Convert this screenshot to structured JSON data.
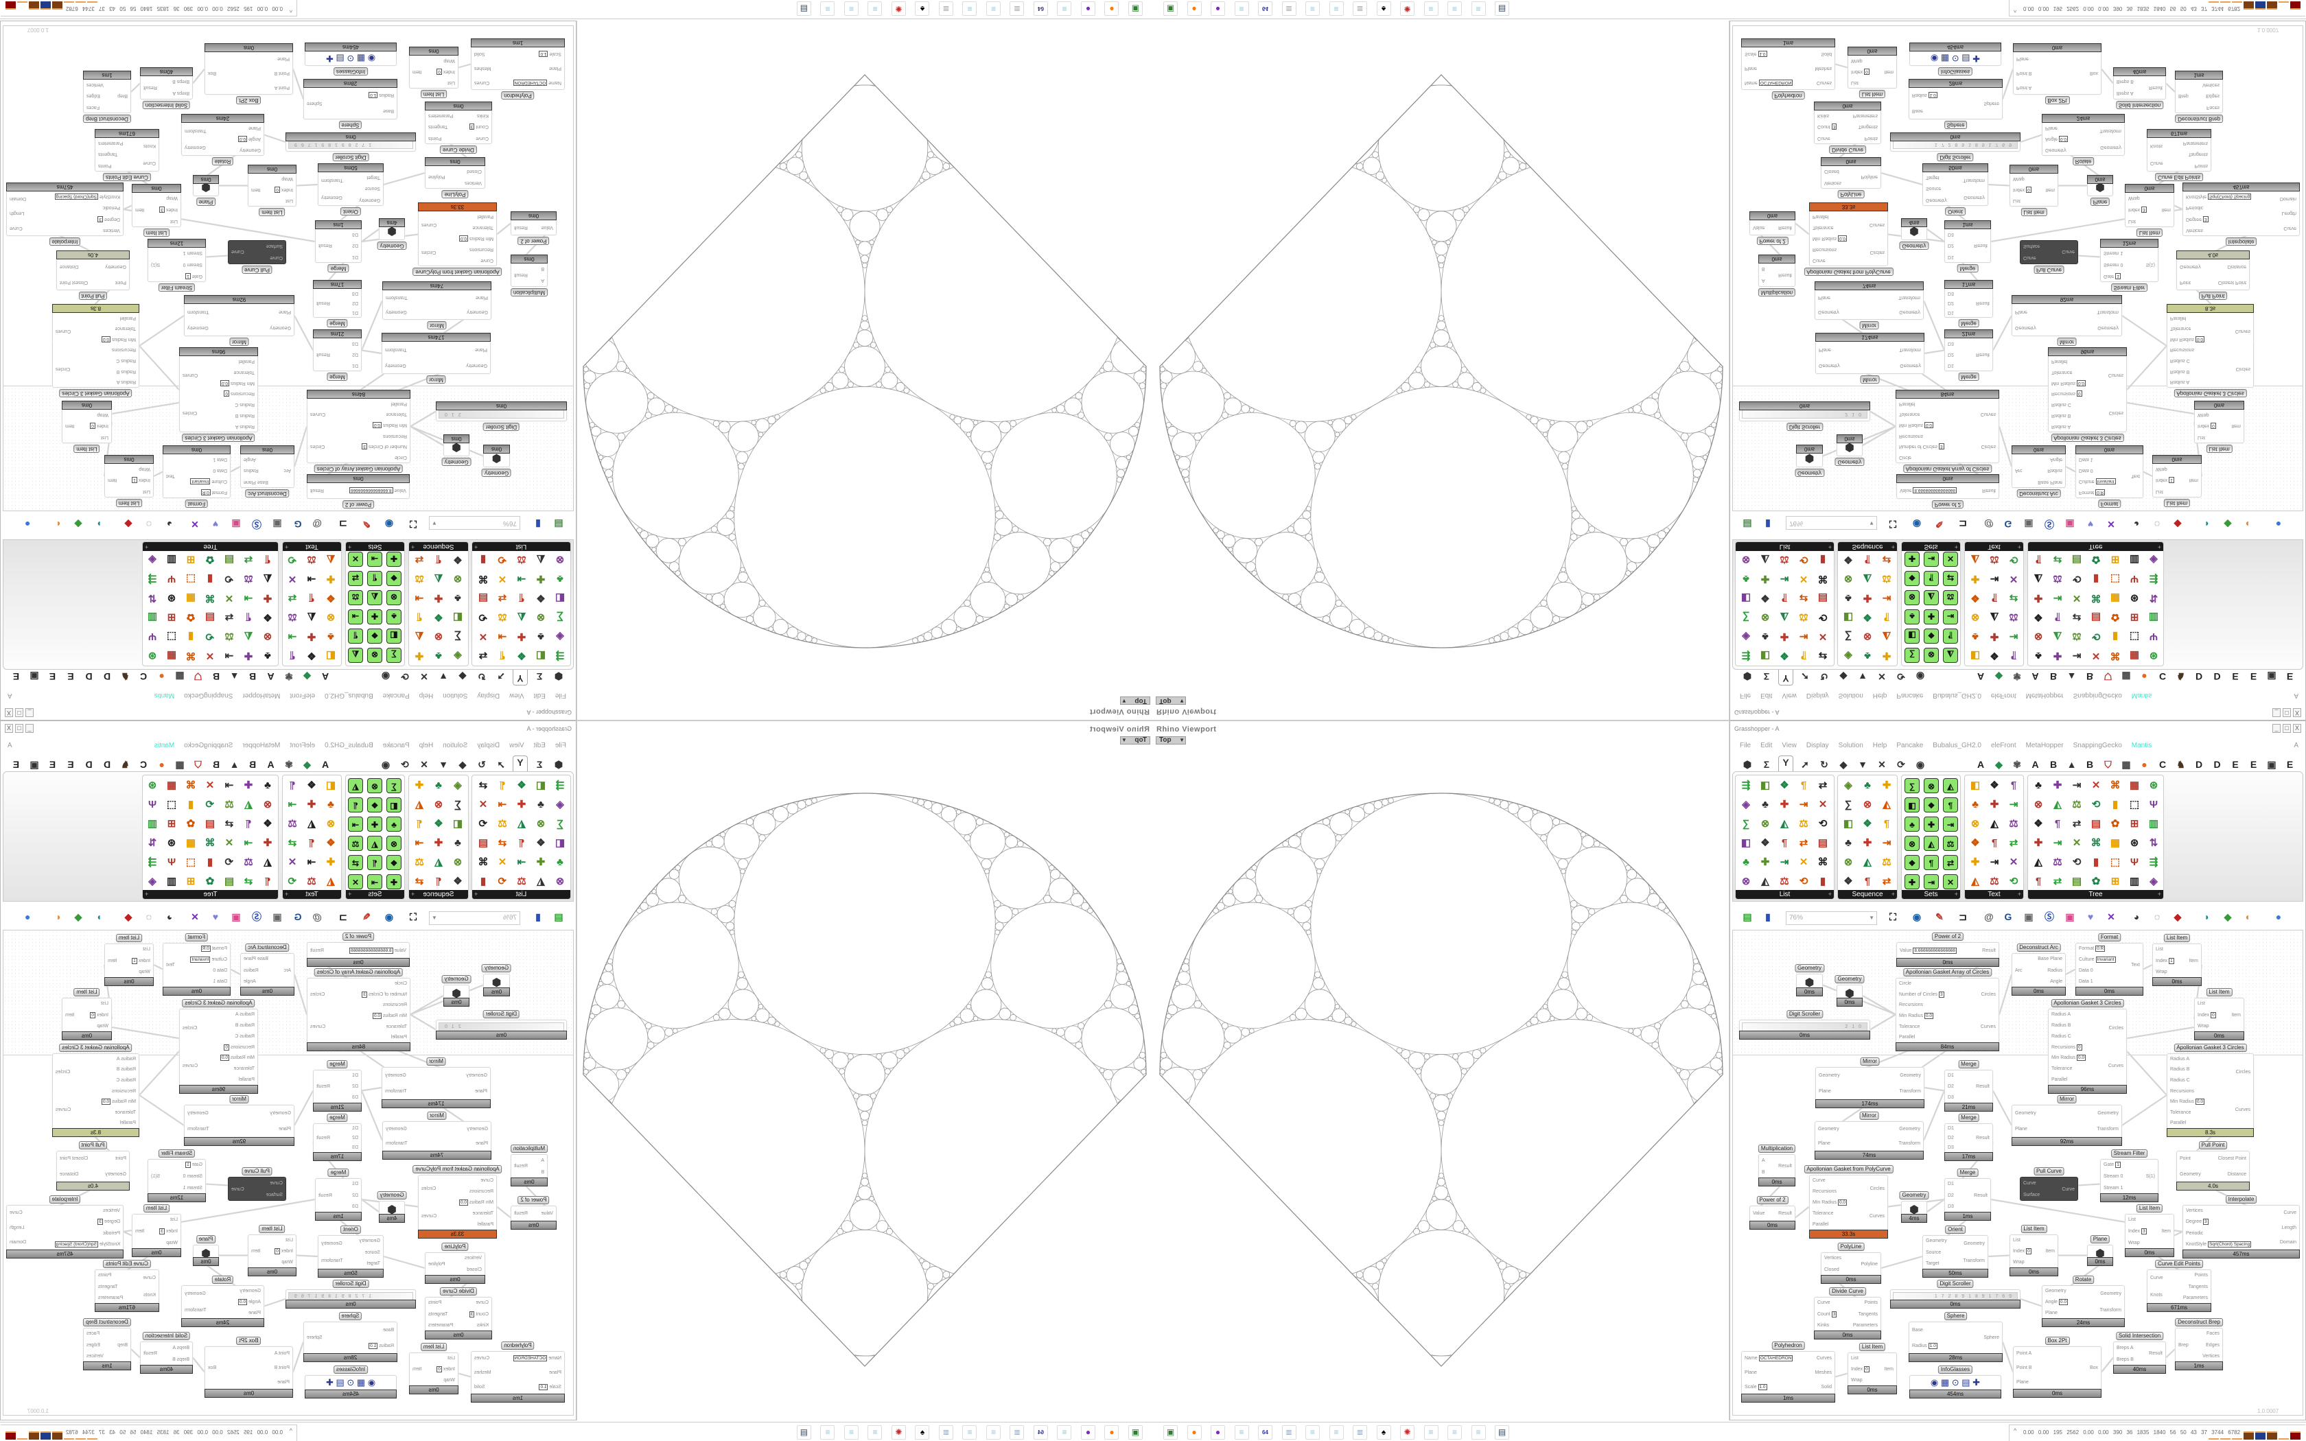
{
  "viewport": {
    "title": "Rhino Viewport",
    "view": "Top"
  },
  "gh": {
    "title": "Grasshopper - A",
    "window_buttons": [
      "_",
      "□",
      "X"
    ],
    "menu": [
      "File",
      "Edit",
      "View",
      "Display",
      "Solution",
      "Help",
      "Pancake",
      "Bubalus_GH2.0",
      "eleFront",
      "MetaHopper",
      "SnappingGecko",
      "Mantis"
    ],
    "menu_accent_color": "#3fe0c8",
    "menu_right": "A",
    "tabs_left": [
      {
        "name": "params-tab-icon",
        "glyph": "⬢"
      },
      {
        "name": "maths-tab-icon",
        "glyph": "Σ"
      },
      {
        "name": "sets-tab-icon",
        "glyph": "Y",
        "selected": true
      },
      {
        "name": "vector-tab-icon",
        "glyph": "➚"
      },
      {
        "name": "curve-tab-icon",
        "glyph": "↻"
      },
      {
        "name": "surface-tab-icon",
        "glyph": "◆"
      },
      {
        "name": "mesh-tab-icon",
        "glyph": "▼"
      },
      {
        "name": "intersect-tab-icon",
        "glyph": "✕"
      },
      {
        "name": "transform-tab-icon",
        "glyph": "⟳"
      },
      {
        "name": "display-tab-icon",
        "glyph": "◉"
      }
    ],
    "tabs_right": [
      "A",
      "◆",
      "✾",
      "A",
      "B",
      "▲",
      "B",
      "⛉",
      "▦",
      "●",
      "C",
      "♞",
      "D",
      "D",
      "E",
      "E",
      "▣",
      "E"
    ],
    "ribbon_panels": [
      {
        "label": "List"
      },
      {
        "label": "Sequence"
      },
      {
        "label": "Sets"
      },
      {
        "label": "Text"
      },
      {
        "label": "Tree"
      }
    ],
    "zoom": "76%",
    "version": "1.0.0007",
    "nodes": [
      {
        "title": "Power of 2",
        "time": "0ms",
        "in": [
          {
            "n": "Value",
            "v": "8.666666666666666"
          }
        ],
        "out": [
          {
            "n": "Result"
          }
        ]
      },
      {
        "title": "Apollonian Gasket Array of Circles",
        "time": "84ms",
        "in": [
          {
            "n": "Circle"
          },
          {
            "n": "Number of Circles",
            "v": "3"
          },
          {
            "n": "Recursions"
          },
          {
            "n": "Min Radius",
            "v": "0.0"
          },
          {
            "n": "Tolerance"
          },
          {
            "n": "Parallel"
          }
        ],
        "out": [
          {
            "n": "Circles"
          },
          {
            "n": "Curves"
          }
        ]
      },
      {
        "title": "Deconstruct Arc",
        "time": "0ms",
        "in": [
          {
            "n": "Arc"
          }
        ],
        "out": [
          {
            "n": "Base Plane"
          },
          {
            "n": "Radius"
          },
          {
            "n": "Angle"
          }
        ]
      },
      {
        "title": "Format",
        "time": "0ms",
        "in": [
          {
            "n": "Format",
            "v": "0:R"
          },
          {
            "n": "Culture",
            "v": "Invariant"
          },
          {
            "n": "Data 0"
          },
          {
            "n": "Data 1"
          }
        ],
        "out": [
          {
            "n": "Text"
          }
        ]
      },
      {
        "title": "List Item",
        "time": "0ms",
        "in": [
          {
            "n": "List"
          },
          {
            "n": "Index",
            "v": "1"
          },
          {
            "n": "Wrap"
          }
        ],
        "out": [
          {
            "n": "Item"
          }
        ]
      },
      {
        "title": "Geometry",
        "time": "0ms",
        "in": [],
        "out": []
      },
      {
        "title": "Geometry",
        "time": "0ms",
        "in": [],
        "out": []
      },
      {
        "title": "Digit Scroller",
        "time": "0ms",
        "scroller": "2 1 0",
        "in": [],
        "out": []
      },
      {
        "title": "Apollonian Gasket 3 Circles",
        "time": "96ms",
        "in": [
          {
            "n": "Radius A"
          },
          {
            "n": "Radius B"
          },
          {
            "n": "Radius C"
          },
          {
            "n": "Recursions",
            "v": "0"
          },
          {
            "n": "Min Radius",
            "v": "0.0"
          },
          {
            "n": "Tolerance"
          },
          {
            "n": "Parallel"
          }
        ],
        "out": [
          {
            "n": "Circles"
          },
          {
            "n": "Curves"
          }
        ]
      },
      {
        "title": "List Item",
        "time": "0ms",
        "in": [
          {
            "n": "List"
          },
          {
            "n": "Index",
            "v": "0"
          },
          {
            "n": "Wrap"
          }
        ],
        "out": [
          {
            "n": "Item"
          }
        ]
      },
      {
        "title": "Apollonian Gasket 3 Circles",
        "time": "8.3s",
        "status_color": "#c6cc92",
        "in": [
          {
            "n": "Radius A"
          },
          {
            "n": "Radius B"
          },
          {
            "n": "Radius C"
          },
          {
            "n": "Recursions"
          },
          {
            "n": "Min Radius",
            "v": "0.0"
          },
          {
            "n": "Tolerance"
          },
          {
            "n": "Parallel"
          }
        ],
        "out": [
          {
            "n": "Circles"
          },
          {
            "n": "Curves"
          }
        ]
      },
      {
        "title": "Mirror",
        "time": "174ms",
        "in": [
          {
            "n": "Geometry"
          },
          {
            "n": "Plane"
          }
        ],
        "out": [
          {
            "n": "Geometry"
          },
          {
            "n": "Transform"
          }
        ]
      },
      {
        "title": "Merge",
        "time": "21ms",
        "in": [
          {
            "n": "D1"
          },
          {
            "n": "D2"
          },
          {
            "n": "D3"
          }
        ],
        "out": [
          {
            "n": "Result"
          }
        ]
      },
      {
        "title": "Mirror",
        "time": "74ms",
        "in": [
          {
            "n": "Geometry"
          },
          {
            "n": "Plane"
          }
        ],
        "out": [
          {
            "n": "Geometry"
          },
          {
            "n": "Transform"
          }
        ]
      },
      {
        "title": "Merge",
        "time": "17ms",
        "in": [
          {
            "n": "D1"
          },
          {
            "n": "D2"
          },
          {
            "n": "D3"
          }
        ],
        "out": [
          {
            "n": "Result"
          }
        ]
      },
      {
        "title": "Mirror",
        "time": "92ms",
        "in": [
          {
            "n": "Geometry"
          },
          {
            "n": "Plane"
          }
        ],
        "out": [
          {
            "n": "Geometry"
          },
          {
            "n": "Transform"
          }
        ]
      },
      {
        "title": "Pull Point",
        "time": "4.0s",
        "status_color": "#c4c6b2",
        "in": [
          {
            "n": "Point"
          },
          {
            "n": "Geometry"
          }
        ],
        "out": [
          {
            "n": "Closest Point"
          },
          {
            "n": "Distance"
          }
        ]
      },
      {
        "title": "Stream Filter",
        "time": "12ms",
        "in": [
          {
            "n": "Gate",
            "v": "1"
          },
          {
            "n": "Stream 0"
          },
          {
            "n": "Stream 1"
          }
        ],
        "out": [
          {
            "n": "S(1)"
          }
        ]
      },
      {
        "title": "Multiplication",
        "time": "0ms",
        "in": [
          {
            "n": "A"
          },
          {
            "n": "B"
          }
        ],
        "out": [
          {
            "n": "Result"
          }
        ]
      },
      {
        "title": "Apollonian Gasket from PolyCurve",
        "time": "33.3s",
        "status_color": "#d2632b",
        "in": [
          {
            "n": "Curve"
          },
          {
            "n": "Recursions"
          },
          {
            "n": "Min Radius",
            "v": "0.0"
          },
          {
            "n": "Tolerance"
          },
          {
            "n": "Parallel"
          }
        ],
        "out": [
          {
            "n": "Circles"
          },
          {
            "n": "Curves"
          }
        ]
      },
      {
        "title": "Power of 2",
        "time": "0ms",
        "in": [
          {
            "n": "Value"
          }
        ],
        "out": [
          {
            "n": "Result"
          }
        ]
      },
      {
        "title": "Geometry",
        "time": "4ms",
        "in": [],
        "out": []
      },
      {
        "title": "Merge",
        "time": "1ms",
        "in": [
          {
            "n": "D1"
          },
          {
            "n": "D2"
          },
          {
            "n": "D3"
          }
        ],
        "out": [
          {
            "n": "Result"
          }
        ]
      },
      {
        "title": "Pull Curve",
        "time": "",
        "dark": true,
        "in": [
          {
            "n": "Curve"
          },
          {
            "n": "Surface"
          }
        ],
        "out": [
          {
            "n": "Curve"
          }
        ]
      },
      {
        "title": "Interpolate",
        "time": "457ms",
        "in": [
          {
            "n": "Vertices"
          },
          {
            "n": "Degree",
            "v": "3"
          },
          {
            "n": "Periodic"
          },
          {
            "n": "KnotStyle",
            "v": "Sqrt(Chord) Spacing"
          }
        ],
        "out": [
          {
            "n": "Curve"
          },
          {
            "n": "Length"
          },
          {
            "n": "Domain"
          }
        ]
      },
      {
        "title": "List Item",
        "time": "0ms",
        "in": [
          {
            "n": "List"
          },
          {
            "n": "Index",
            "v": "3"
          },
          {
            "n": "Wrap"
          }
        ],
        "out": [
          {
            "n": "Item"
          }
        ]
      },
      {
        "title": "PolyLine",
        "time": "0ms",
        "in": [
          {
            "n": "Vertices"
          },
          {
            "n": "Closed"
          }
        ],
        "out": [
          {
            "n": "Polyline"
          }
        ]
      },
      {
        "title": "Orient",
        "time": "50ms",
        "in": [
          {
            "n": "Geometry"
          },
          {
            "n": "Source"
          },
          {
            "n": "Target"
          }
        ],
        "out": [
          {
            "n": "Geometry"
          },
          {
            "n": "Transform"
          }
        ]
      },
      {
        "title": "List Item",
        "time": "0ms",
        "in": [
          {
            "n": "List"
          },
          {
            "n": "Index",
            "v": "0"
          },
          {
            "n": "Wrap"
          }
        ],
        "out": [
          {
            "n": "Item"
          }
        ]
      },
      {
        "title": "Plane",
        "time": "0ms",
        "in": [],
        "out": []
      },
      {
        "title": "Curve Edit Points",
        "time": "671ms",
        "in": [
          {
            "n": "Curve"
          },
          {
            "n": "Knots"
          }
        ],
        "out": [
          {
            "n": "Points"
          },
          {
            "n": "Tangents"
          },
          {
            "n": "Parameters"
          }
        ]
      },
      {
        "title": "Digit Scroller",
        "time": "0ms",
        "scroller": "1 7 2 8 9 1 8 9 1 7 6 9",
        "in": [],
        "out": []
      },
      {
        "title": "Rotate",
        "time": "24ms",
        "in": [
          {
            "n": "Geometry"
          },
          {
            "n": "Angle",
            "v": "0.0"
          },
          {
            "n": "Plane"
          }
        ],
        "out": [
          {
            "n": "Geometry"
          },
          {
            "n": "Transform"
          }
        ]
      },
      {
        "title": "Divide Curve",
        "time": "0ms",
        "in": [
          {
            "n": "Curve"
          },
          {
            "n": "Count",
            "v": "3"
          },
          {
            "n": "Kinks"
          }
        ],
        "out": [
          {
            "n": "Points"
          },
          {
            "n": "Tangents"
          },
          {
            "n": "Parameters"
          }
        ]
      },
      {
        "title": "Sphere",
        "time": "28ms",
        "in": [
          {
            "n": "Base"
          },
          {
            "n": "Radius",
            "v": "1.0"
          }
        ],
        "out": [
          {
            "n": "Sphere"
          }
        ]
      },
      {
        "title": "Deconstruct Brep",
        "time": "1ms",
        "in": [
          {
            "n": "Brep"
          }
        ],
        "out": [
          {
            "n": "Faces"
          },
          {
            "n": "Edges"
          },
          {
            "n": "Vertices"
          }
        ]
      },
      {
        "title": "Solid Intersection",
        "time": "40ms",
        "in": [
          {
            "n": "Breps A"
          },
          {
            "n": "Breps B"
          }
        ],
        "out": [
          {
            "n": "Result"
          }
        ]
      },
      {
        "title": "Box 2Pt",
        "time": "0ms",
        "in": [
          {
            "n": "Point A"
          },
          {
            "n": "Point B"
          },
          {
            "n": "Plane"
          }
        ],
        "out": [
          {
            "n": "Box"
          }
        ]
      },
      {
        "title": "Polyhedron",
        "time": "1ms",
        "in": [
          {
            "n": "Name",
            "v": "OCTAHEDRON"
          },
          {
            "n": "Plane"
          },
          {
            "n": "Scale",
            "v": "1.0"
          }
        ],
        "out": [
          {
            "n": "Curves"
          },
          {
            "n": "Meshes"
          },
          {
            "n": "Solid"
          }
        ]
      },
      {
        "title": "List Item",
        "time": "0ms",
        "in": [
          {
            "n": "List"
          },
          {
            "n": "Index",
            "v": "0"
          },
          {
            "n": "Wrap"
          }
        ],
        "out": [
          {
            "n": "Item"
          }
        ]
      },
      {
        "title": "InfoGlasses",
        "time": "454ms",
        "in": [],
        "out": []
      }
    ]
  },
  "taskbar": {
    "apps": [
      {
        "name": "terminal-icon",
        "color": "#2e7d32",
        "glyph": "▣"
      },
      {
        "name": "firefox-icon",
        "color": "#ff7a00",
        "glyph": "●"
      },
      {
        "name": "discord-icon",
        "color": "#7b2cbf",
        "glyph": "●"
      },
      {
        "name": "notepad-icon",
        "color": "#8fc4d0",
        "glyph": "≡"
      },
      {
        "name": "floppy-icon",
        "color": "#3030a0",
        "glyph": "64"
      },
      {
        "name": "script-icon",
        "color": "#9aa8c0",
        "glyph": "≣"
      },
      {
        "name": "notepad-icon",
        "color": "#8fc4d0",
        "glyph": "≡"
      },
      {
        "name": "notepad-icon",
        "color": "#8fc4d0",
        "glyph": "≡"
      },
      {
        "name": "script-icon",
        "color": "#9aa8c0",
        "glyph": "≣"
      },
      {
        "name": "mask-icon",
        "color": "#000000",
        "glyph": "♠"
      },
      {
        "name": "red-app-icon",
        "color": "#c62828",
        "glyph": "✺"
      },
      {
        "name": "notepad-icon",
        "color": "#8fc4d0",
        "glyph": "≡"
      },
      {
        "name": "notepad-icon",
        "color": "#8fc4d0",
        "glyph": "≡"
      },
      {
        "name": "notepad-icon",
        "color": "#8fc4d0",
        "glyph": "≡"
      },
      {
        "name": "monitor-icon",
        "color": "#34495e",
        "glyph": "▤"
      }
    ],
    "tray_arrow": "^",
    "tray_values": [
      "0.00",
      "0.00",
      "195",
      "2562",
      "0.00",
      "0.00",
      "390",
      "36",
      "1835",
      "1840",
      "56",
      "50",
      "43",
      "37",
      "3744",
      "6782"
    ],
    "meter_colors": [
      "#f2f08a",
      "#f2f08a",
      "#f2f08a",
      "#7a3e12",
      "#1f3b8c",
      "#7a3e12",
      "#5ccc5c",
      "#8b0000"
    ]
  }
}
